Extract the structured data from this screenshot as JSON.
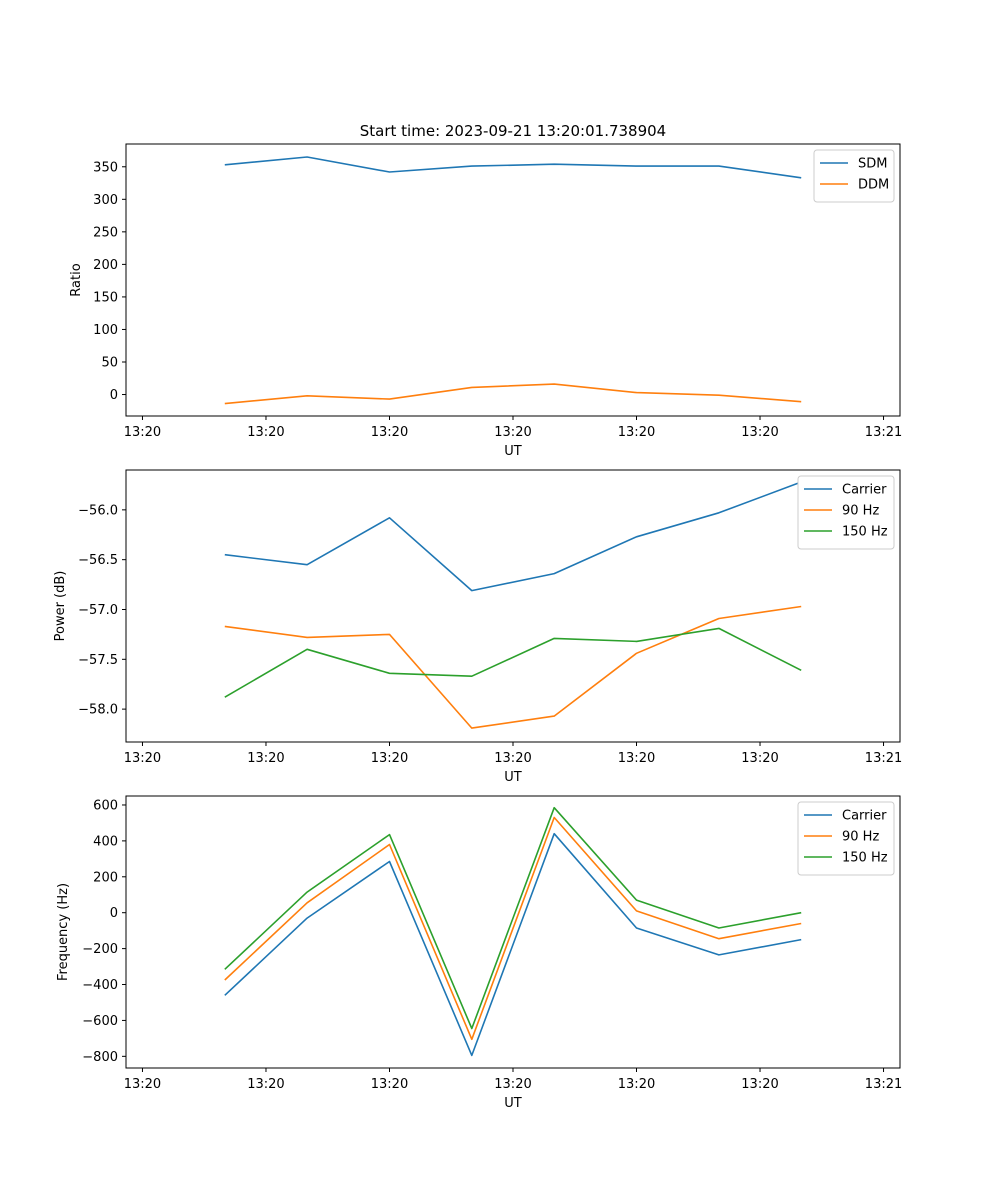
{
  "figure_title": "Start time: 2023-09-21 13:20:01.738904",
  "colors": {
    "blue": "#1f77b4",
    "orange": "#ff7f0e",
    "green": "#2ca02c"
  },
  "chart_data": [
    {
      "type": "line",
      "title": "Start time: 2023-09-21 13:20:01.738904",
      "xlabel": "UT",
      "ylabel": "Ratio",
      "x": [
        1,
        2,
        3,
        4,
        5,
        6,
        7,
        8
      ],
      "xlim": [
        -0.2,
        9.2
      ],
      "xticks": [
        0,
        1.5,
        3,
        4.5,
        6,
        7.5,
        9
      ],
      "xtick_labels": [
        "13:20",
        "13:20",
        "13:20",
        "13:20",
        "13:20",
        "13:20",
        "13:21"
      ],
      "ylim": [
        -33,
        385
      ],
      "yticks": [
        0,
        50,
        100,
        150,
        200,
        250,
        300,
        350
      ],
      "ytick_labels": [
        "0",
        "50",
        "100",
        "150",
        "200",
        "250",
        "300",
        "350"
      ],
      "legend_position": "top-right",
      "series": [
        {
          "name": "SDM",
          "color": "#1f77b4",
          "values": [
            353,
            365,
            342,
            351,
            354,
            351,
            351,
            333
          ]
        },
        {
          "name": "DDM",
          "color": "#ff7f0e",
          "values": [
            -14,
            -2,
            -7,
            11,
            16,
            3,
            -1,
            -11
          ]
        }
      ]
    },
    {
      "type": "line",
      "title": "",
      "xlabel": "UT",
      "ylabel": "Power (dB)",
      "x": [
        1,
        2,
        3,
        4,
        5,
        6,
        7,
        8
      ],
      "xlim": [
        -0.2,
        9.2
      ],
      "xticks": [
        0,
        1.5,
        3,
        4.5,
        6,
        7.5,
        9
      ],
      "xtick_labels": [
        "13:20",
        "13:20",
        "13:20",
        "13:20",
        "13:20",
        "13:20",
        "13:21"
      ],
      "ylim": [
        -58.33,
        -55.6
      ],
      "yticks": [
        -58.0,
        -57.5,
        -57.0,
        -56.5,
        -56.0
      ],
      "ytick_labels": [
        "−58.0",
        "−57.5",
        "−57.0",
        "−56.5",
        "−56.0"
      ],
      "legend_position": "top-right",
      "series": [
        {
          "name": "Carrier",
          "color": "#1f77b4",
          "values": [
            -56.45,
            -56.55,
            -56.08,
            -56.81,
            -56.64,
            -56.27,
            -56.03,
            -55.72
          ]
        },
        {
          "name": "90 Hz",
          "color": "#ff7f0e",
          "values": [
            -57.17,
            -57.28,
            -57.25,
            -58.19,
            -58.07,
            -57.44,
            -57.09,
            -56.97
          ]
        },
        {
          "name": "150 Hz",
          "color": "#2ca02c",
          "values": [
            -57.88,
            -57.4,
            -57.64,
            -57.67,
            -57.29,
            -57.32,
            -57.19,
            -57.61
          ]
        }
      ]
    },
    {
      "type": "line",
      "title": "",
      "xlabel": "UT",
      "ylabel": "Frequency (Hz)",
      "x": [
        1,
        2,
        3,
        4,
        5,
        6,
        7,
        8
      ],
      "xlim": [
        -0.2,
        9.2
      ],
      "xticks": [
        0,
        1.5,
        3,
        4.5,
        6,
        7.5,
        9
      ],
      "xtick_labels": [
        "13:20",
        "13:20",
        "13:20",
        "13:20",
        "13:20",
        "13:20",
        "13:21"
      ],
      "ylim": [
        -865,
        650
      ],
      "yticks": [
        -800,
        -600,
        -400,
        -200,
        0,
        200,
        400,
        600
      ],
      "ytick_labels": [
        "−800",
        "−600",
        "−400",
        "−200",
        "0",
        "200",
        "400",
        "600"
      ],
      "legend_position": "top-right",
      "series": [
        {
          "name": "Carrier",
          "color": "#1f77b4",
          "values": [
            -460,
            -30,
            285,
            -795,
            440,
            -85,
            -235,
            -150
          ]
        },
        {
          "name": "90 Hz",
          "color": "#ff7f0e",
          "values": [
            -375,
            55,
            380,
            -705,
            530,
            10,
            -145,
            -60
          ]
        },
        {
          "name": "150 Hz",
          "color": "#2ca02c",
          "values": [
            -315,
            115,
            435,
            -645,
            585,
            70,
            -85,
            0
          ]
        }
      ]
    }
  ]
}
